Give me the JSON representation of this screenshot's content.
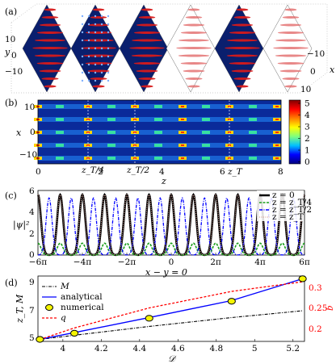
{
  "panels": {
    "a": {
      "label": "(a)",
      "y_axis_label": "y",
      "y_ticks": [
        "10",
        "0",
        "−10"
      ],
      "x_axis_label": "x",
      "x_ticks": [
        "−10",
        "0",
        "10"
      ],
      "slice_shading": [
        "dark",
        "dark",
        "dark",
        "light",
        "dark",
        "light"
      ]
    },
    "b": {
      "label": "(b)",
      "y_axis_label": "x",
      "y_ticks": [
        "10",
        "0",
        "−10"
      ],
      "x_axis_label": "z",
      "x_ticks": [
        "0",
        "2",
        "4",
        "6",
        "8"
      ],
      "x_marks": [
        "z_T/4",
        "z_T/2",
        "z_T"
      ],
      "colorbar_ticks": [
        "5",
        "4",
        "3",
        "2",
        "1",
        "0"
      ],
      "colorbar_colors": [
        "#00007f",
        "#0000ff",
        "#00c0ff",
        "#7fff7f",
        "#ffff00",
        "#ff8000",
        "#ff0000",
        "#7f0000"
      ]
    },
    "c": {
      "label": "(c)",
      "y_axis_label": "|ψ|²",
      "y_ticks": [
        "6",
        "4",
        "2",
        "0"
      ],
      "x_axis_label": "x − y = 0",
      "x_ticks": [
        "−6π",
        "−4π",
        "−2π",
        "0",
        "2π",
        "4π",
        "6π"
      ],
      "legend": [
        "z = 0",
        "z = z_T/4",
        "z = z_T/2",
        "z = z_T"
      ],
      "colors": {
        "z0": "#000000",
        "zT4": "#1a9e1a",
        "zT2": "#0000ff",
        "zT": "#d9a39a"
      }
    },
    "d": {
      "label": "(d)",
      "y_axis_label": "z_T, M",
      "y_ticks": [
        "9",
        "7",
        "5"
      ],
      "y2_axis_label": "q",
      "y2_ticks": [
        "0.3",
        "0.25",
        "0.2"
      ],
      "x_axis_label": "𝒟",
      "x_ticks": [
        "4",
        "4.2",
        "4.4",
        "4.6",
        "4.8",
        "5",
        "5.2"
      ],
      "legend": [
        "M",
        "analytical",
        "numerical",
        "q"
      ],
      "colors": {
        "M": "#000000",
        "analytical": "#0000ff",
        "numerical": "#f5f500",
        "q": "#ff0000"
      }
    }
  },
  "chart_data": [
    {
      "type": "line",
      "panel": "(c)",
      "xlabel": "x − y = 0",
      "ylabel": "|ψ|²",
      "xlim": [
        -18.85,
        18.85
      ],
      "ylim": [
        0,
        6
      ],
      "peaks_x": [
        -18.85,
        -15.71,
        -12.57,
        -9.42,
        -6.28,
        -3.14,
        0,
        3.14,
        6.28,
        9.42,
        12.57,
        15.71,
        18.85
      ],
      "series": [
        {
          "name": "z = 0",
          "peak_height": 5.6,
          "peak_offset": 0
        },
        {
          "name": "z = z_T/4",
          "peak_height": 1.1,
          "peak_offset": 0
        },
        {
          "name": "z = z_T/2",
          "peak_height": 5.3,
          "peak_offset": 1.5708
        },
        {
          "name": "z = z_T",
          "peak_height": 5.6,
          "peak_offset": 0
        }
      ]
    },
    {
      "type": "line",
      "panel": "(d)",
      "xlabel": "𝒟",
      "ylabel": "z_T, M",
      "y2label": "q",
      "xlim": [
        3.87,
        5.26
      ],
      "ylim": [
        4.6,
        9.4
      ],
      "y2lim": [
        0.175,
        0.345
      ],
      "series": [
        {
          "name": "M",
          "axis": "left",
          "x": [
            3.88,
            4.06,
            4.45,
            4.88,
            5.25
          ],
          "y": [
            4.75,
            5.05,
            5.7,
            6.35,
            6.85
          ]
        },
        {
          "name": "analytical",
          "axis": "left",
          "x": [
            3.88,
            4.06,
            4.45,
            4.88,
            5.25
          ],
          "y": [
            4.75,
            5.25,
            6.35,
            7.6,
            9.2
          ]
        },
        {
          "name": "numerical",
          "axis": "left",
          "x": [
            3.88,
            4.06,
            4.45,
            4.88,
            5.25
          ],
          "y": [
            4.75,
            5.2,
            6.3,
            7.55,
            9.2
          ]
        },
        {
          "name": "q",
          "axis": "right",
          "x": [
            3.88,
            4.06,
            4.45,
            4.88,
            5.25
          ],
          "y": [
            0.18,
            0.21,
            0.262,
            0.305,
            0.33
          ]
        }
      ]
    }
  ]
}
